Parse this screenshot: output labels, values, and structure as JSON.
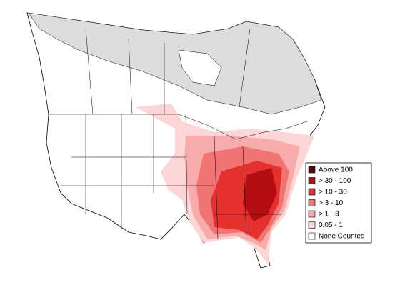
{
  "legend": {
    "items": [
      {
        "label": "Above 100",
        "color": "#5a0b0b"
      },
      {
        "label": "> 30 - 100",
        "color": "#b30f12"
      },
      {
        "label": "> 10 - 30",
        "color": "#e4302f"
      },
      {
        "label": "> 3 - 10",
        "color": "#f07474"
      },
      {
        "label": "> 1 - 3",
        "color": "#f8abab"
      },
      {
        "label": "0.05 - 1",
        "color": "#fcd6d6"
      },
      {
        "label": "None Counted",
        "color": "#ffffff"
      }
    ]
  }
}
